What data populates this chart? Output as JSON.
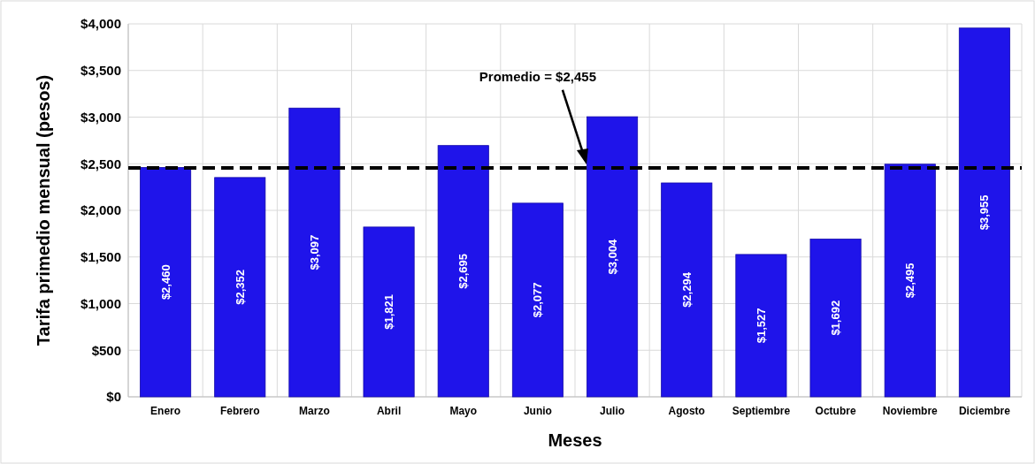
{
  "chart_data": {
    "type": "bar",
    "xlabel": "Meses",
    "ylabel": "Tarifa primedio mensual (pesos)",
    "categories": [
      "Enero",
      "Febrero",
      "Marzo",
      "Abril",
      "Mayo",
      "Junio",
      "Julio",
      "Agosto",
      "Septiembre",
      "Octubre",
      "Noviembre",
      "Diciembre"
    ],
    "values": [
      2460,
      2352,
      3097,
      1821,
      2695,
      2077,
      3004,
      2294,
      1527,
      1692,
      2495,
      3955
    ],
    "value_labels": [
      "$2,460",
      "$2,352",
      "$3,097",
      "$1,821",
      "$2,695",
      "$2,077",
      "$3,004",
      "$2,294",
      "$1,527",
      "$1,692",
      "$2,495",
      "$3,955"
    ],
    "color": "#1f14ea",
    "ylim": [
      0,
      4000
    ],
    "yticks": [
      {
        "value": 0,
        "label": "$0"
      },
      {
        "value": 500,
        "label": "$500"
      },
      {
        "value": 1000,
        "label": "$1,000"
      },
      {
        "value": 1500,
        "label": "$1,500"
      },
      {
        "value": 2000,
        "label": "$2,000"
      },
      {
        "value": 2500,
        "label": "$2,500"
      },
      {
        "value": 3000,
        "label": "$3,000"
      },
      {
        "value": 3500,
        "label": "$3,500"
      },
      {
        "value": 4000,
        "label": "$4,000"
      }
    ],
    "grid": true,
    "ref_lines": [
      {
        "axis": "y",
        "value": 2455,
        "label": "Promedio = $2,455",
        "color": "#000000",
        "line_style": "dashed"
      }
    ]
  }
}
